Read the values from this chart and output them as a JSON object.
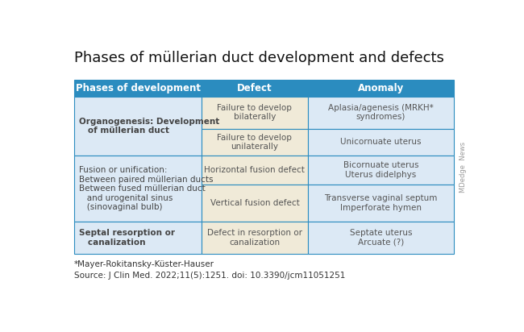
{
  "title": "Phases of müllerian duct development and defects",
  "title_fontsize": 13,
  "header": [
    "Phases of development",
    "Defect",
    "Anomaly"
  ],
  "header_bg": "#2b8cbf",
  "header_text_color": "#ffffff",
  "phase_bg": "#dce9f5",
  "defect_bg": "#f0ead8",
  "anomaly_bg": "#dce9f5",
  "border_color": "#2b8cbf",
  "text_color": "#555555",
  "bold_text_color": "#444444",
  "bg_color": "#ffffff",
  "rows": [
    {
      "phase_text": "Organogenesis: Development\n   of müllerian duct",
      "phase_bold": true,
      "phase_span": 1,
      "defects": [
        "Failure to develop\nbilaterally",
        "Failure to develop\nunilaterally"
      ],
      "anomalies": [
        "Aplasia/agenesis (MRKH*\nsyndromes)",
        "Unicornuate uterus"
      ]
    },
    {
      "phase_text": "Fusion or unification:\nBetween paired müllerian ducts\nBetween fused müllerian duct\n   and urogenital sinus\n   (sinovaginal bulb)",
      "phase_bold": false,
      "phase_span": 2,
      "defects": [
        "Horizontal fusion defect",
        "Vertical fusion defect"
      ],
      "anomalies": [
        "Bicornuate uterus\nUterus didelphys",
        "Transverse vaginal septum\nImperforate hymen"
      ]
    },
    {
      "phase_text": "Septal resorption or\n   canalization",
      "phase_bold": true,
      "phase_span": 1,
      "defects": [
        "Defect in resorption or\ncanalization"
      ],
      "anomalies": [
        "Septate uterus\nArcuate (?)"
      ]
    }
  ],
  "footer_note": "*Mayer-Rokitansky-Küster-Hauser",
  "footer_source": "Source: J Clin Med. 2022;11(5):1251. doi: 10.3390/jcm11051251",
  "watermark": "MDedge  News"
}
